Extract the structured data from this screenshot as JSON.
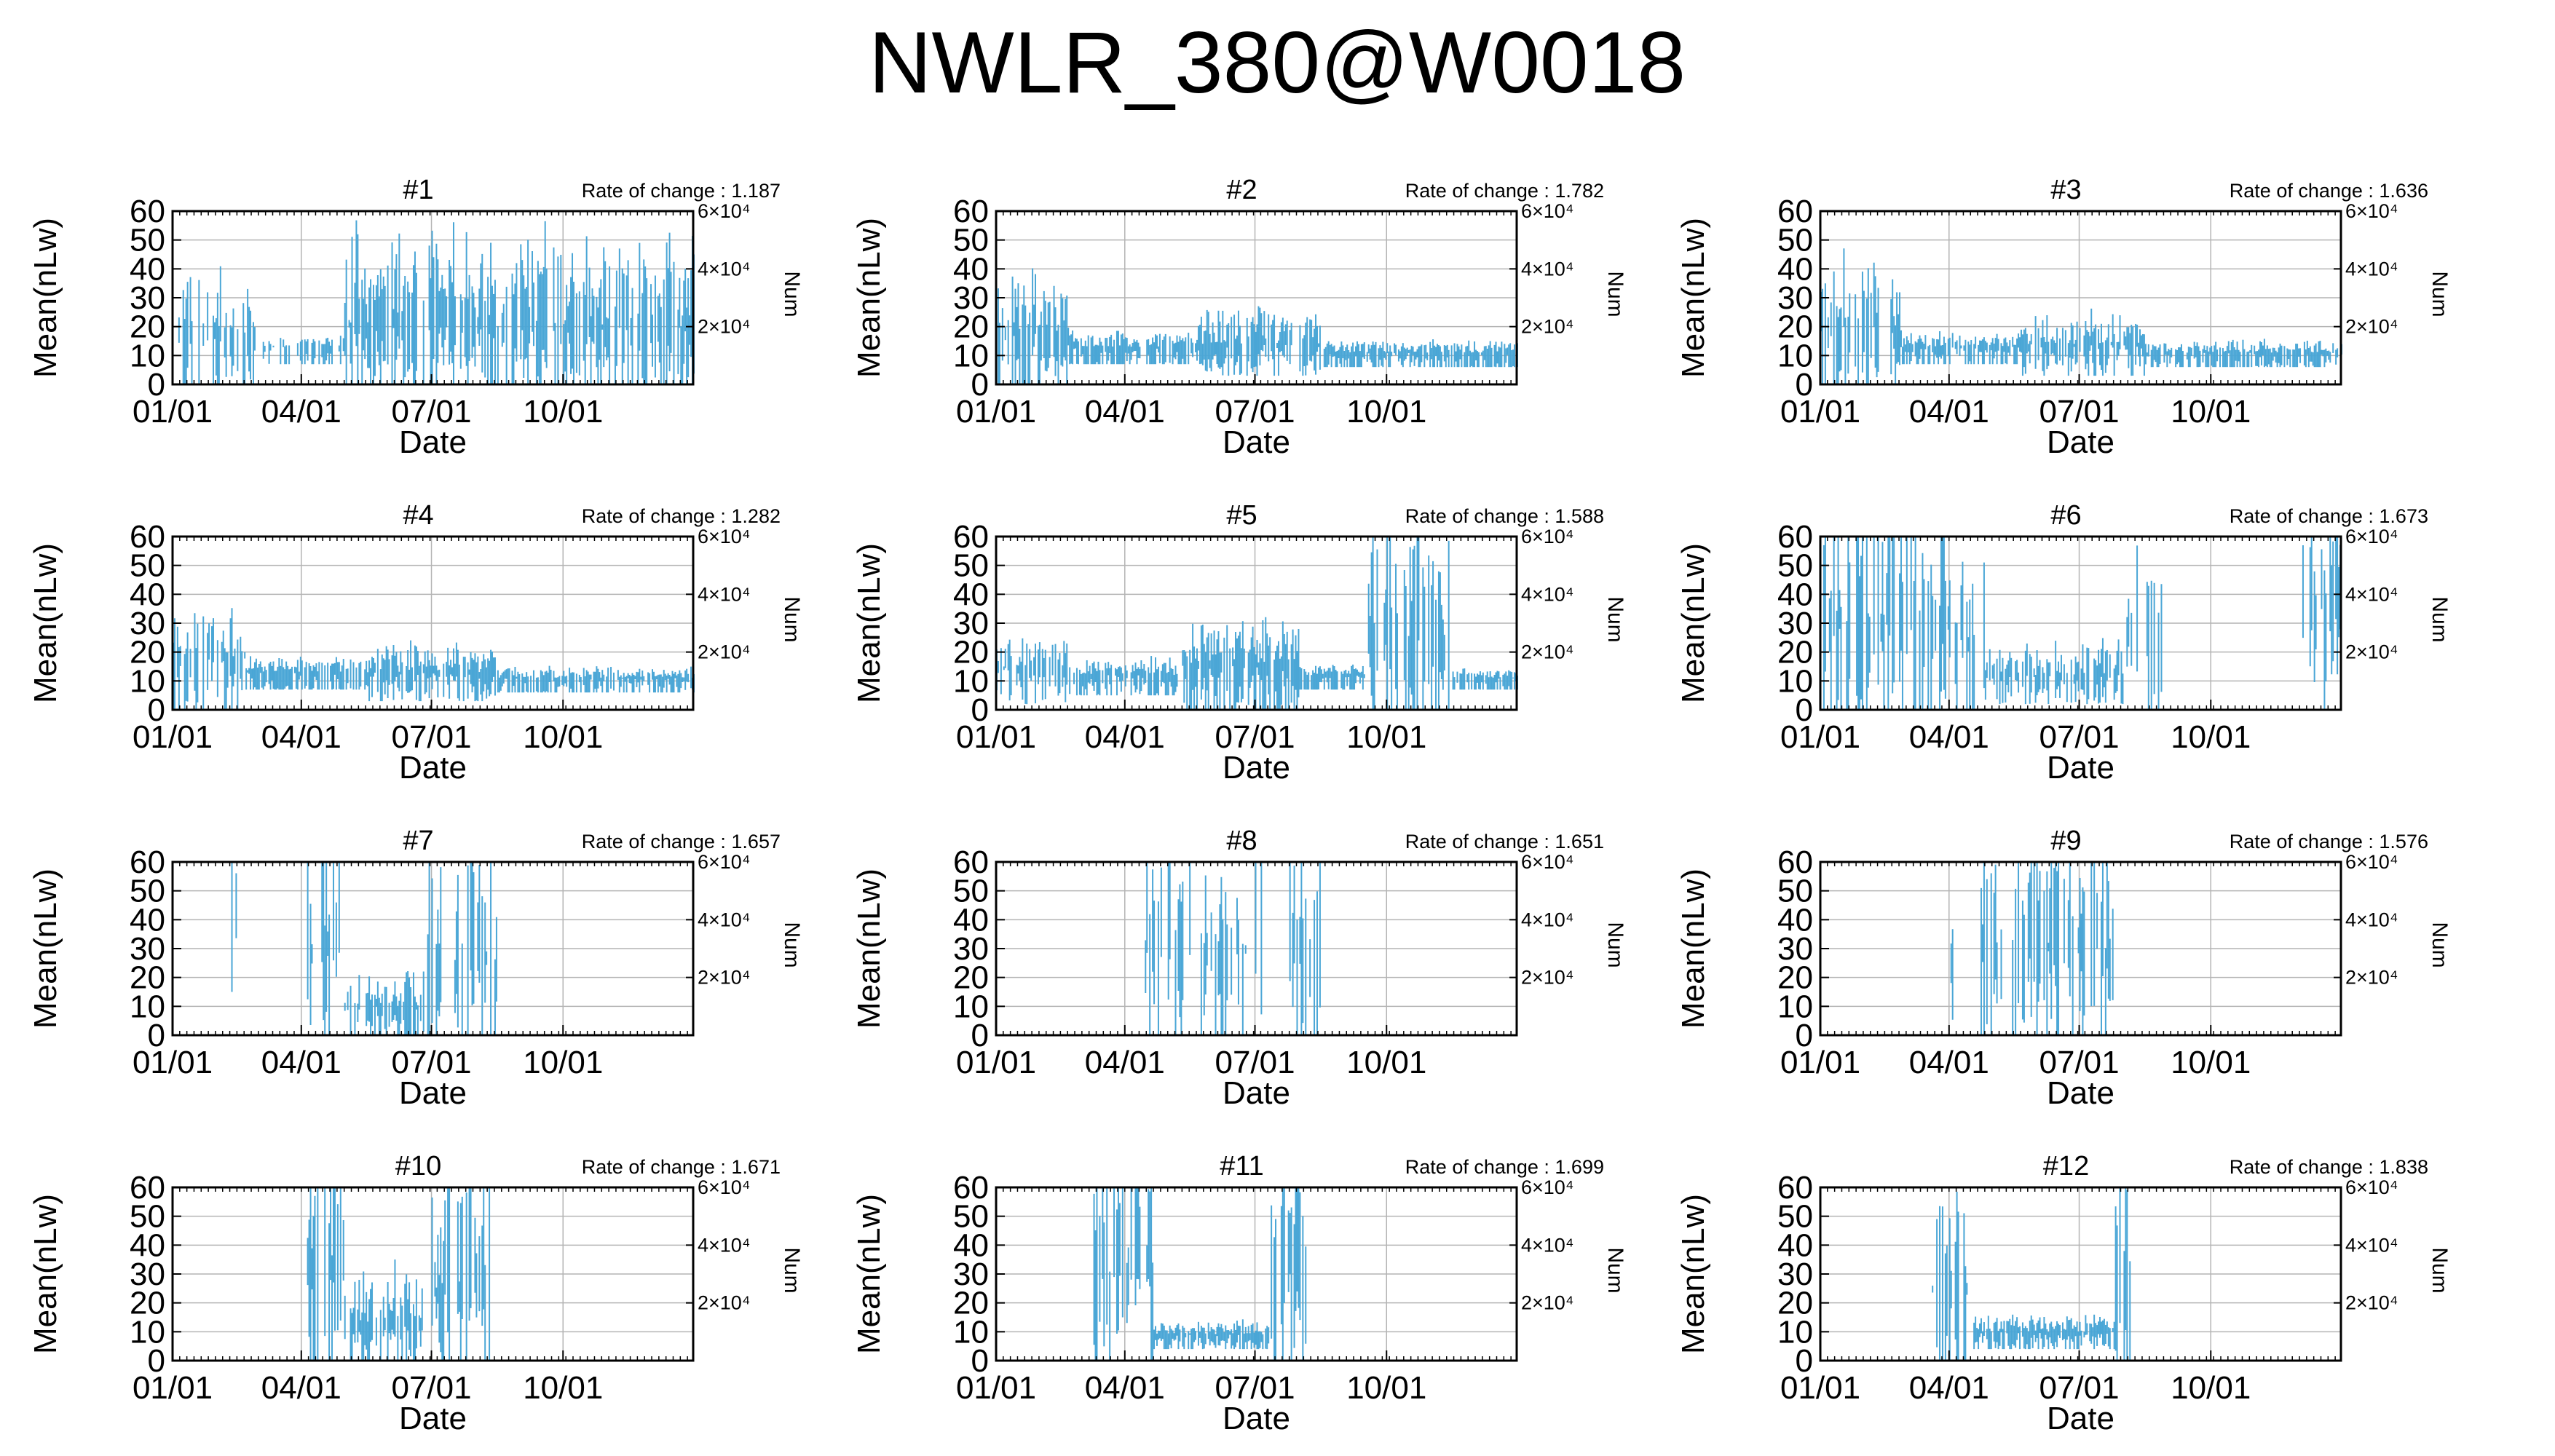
{
  "figure_title": "NWLR_380@W0018",
  "colors": {
    "data": "#4aa6d6",
    "grid": "#b4b4b4",
    "frame": "#000000"
  },
  "chart_data": {
    "type": "line",
    "style": "daily-value-bars",
    "panel_grid": {
      "rows": 4,
      "cols": 3
    },
    "shared_axes": {
      "xlabel": "Date",
      "ylabel_left": "Mean(nLw)",
      "ylabel_right": "Num",
      "x_range": [
        "2001-01-01",
        "2001-12-31"
      ],
      "x_ticks": [
        "2001-01-01",
        "2001-04-01",
        "2001-07-01",
        "2001-10-01"
      ],
      "x_tick_labels": [
        "01/01",
        "04/01",
        "07/01",
        "10/01"
      ],
      "ylim_left": [
        0,
        60
      ],
      "y_ticks_left": [
        "0",
        "10",
        "20",
        "30",
        "40",
        "50",
        "60"
      ],
      "ylim_right": [
        0,
        60000
      ],
      "y_ticks_right": [
        "2×10⁴",
        "4×10⁴",
        "6×10⁴"
      ],
      "grid": true
    },
    "panels": [
      {
        "title": "#1",
        "rate_label": "Rate of change : 1.187",
        "segments": [
          {
            "start": "01-01",
            "end": "02-28",
            "base": 16,
            "spread": 26,
            "density": 0.55,
            "low": 0
          },
          {
            "start": "03-01",
            "end": "04-30",
            "base": 13,
            "spread": 5,
            "density": 0.55,
            "low": 7
          },
          {
            "start": "05-01",
            "end": "12-31",
            "base": 20,
            "spread": 38,
            "density": 0.72,
            "low": 0
          }
        ]
      },
      {
        "title": "#2",
        "rate_label": "Rate of change : 1.782",
        "segments": [
          {
            "start": "01-01",
            "end": "02-20",
            "base": 18,
            "spread": 26,
            "density": 0.6,
            "low": 0
          },
          {
            "start": "02-21",
            "end": "05-20",
            "base": 13,
            "spread": 6,
            "density": 0.8,
            "low": 7
          },
          {
            "start": "05-21",
            "end": "08-15",
            "base": 14,
            "spread": 14,
            "density": 0.85,
            "low": 3
          },
          {
            "start": "08-16",
            "end": "12-31",
            "base": 11,
            "spread": 5,
            "density": 0.85,
            "low": 6
          }
        ]
      },
      {
        "title": "#3",
        "rate_label": "Rate of change : 1.636",
        "segments": [
          {
            "start": "01-01",
            "end": "02-25",
            "base": 20,
            "spread": 28,
            "density": 0.6,
            "low": 0
          },
          {
            "start": "02-26",
            "end": "05-20",
            "base": 13,
            "spread": 6,
            "density": 0.8,
            "low": 7
          },
          {
            "start": "05-21",
            "end": "08-15",
            "base": 14,
            "spread": 13,
            "density": 0.85,
            "low": 3
          },
          {
            "start": "08-16",
            "end": "12-31",
            "base": 11,
            "spread": 5,
            "density": 0.85,
            "low": 6
          }
        ]
      },
      {
        "title": "#4",
        "rate_label": "Rate of change : 1.282",
        "segments": [
          {
            "start": "01-01",
            "end": "02-20",
            "base": 18,
            "spread": 20,
            "density": 0.6,
            "low": 0
          },
          {
            "start": "02-21",
            "end": "05-15",
            "base": 13,
            "spread": 6,
            "density": 0.8,
            "low": 7
          },
          {
            "start": "05-16",
            "end": "08-15",
            "base": 13,
            "spread": 12,
            "density": 0.85,
            "low": 3
          },
          {
            "start": "08-16",
            "end": "12-31",
            "base": 11,
            "spread": 5,
            "density": 0.85,
            "low": 6
          }
        ]
      },
      {
        "title": "#5",
        "rate_label": "Rate of change : 1.588",
        "segments": [
          {
            "start": "01-01",
            "end": "02-20",
            "base": 15,
            "spread": 12,
            "density": 0.6,
            "low": 2
          },
          {
            "start": "02-21",
            "end": "05-10",
            "base": 12,
            "spread": 8,
            "density": 0.8,
            "low": 5
          },
          {
            "start": "05-11",
            "end": "07-31",
            "base": 16,
            "spread": 18,
            "density": 0.85,
            "low": 0
          },
          {
            "start": "08-01",
            "end": "09-15",
            "base": 12,
            "spread": 4,
            "density": 0.8,
            "low": 7
          },
          {
            "start": "09-16",
            "end": "11-15",
            "base": 25,
            "spread": 60,
            "density": 0.6,
            "low": 0
          },
          {
            "start": "11-16",
            "end": "12-31",
            "base": 11,
            "spread": 4,
            "density": 0.8,
            "low": 7
          }
        ]
      },
      {
        "title": "#6",
        "rate_label": "Rate of change : 1.673",
        "segments": [
          {
            "start": "01-01",
            "end": "03-31",
            "base": 30,
            "spread": 60,
            "density": 0.6,
            "low": 0
          },
          {
            "start": "04-01",
            "end": "04-25",
            "base": 25,
            "spread": 40,
            "density": 0.4,
            "low": 0
          },
          {
            "start": "04-26",
            "end": "07-31",
            "base": 12,
            "spread": 14,
            "density": 0.75,
            "low": 2
          },
          {
            "start": "08-01",
            "end": "08-31",
            "base": 25,
            "spread": 60,
            "density": 0.3,
            "low": 0
          },
          {
            "start": "12-01",
            "end": "12-31",
            "base": 35,
            "spread": 60,
            "density": 0.5,
            "low": 0
          }
        ]
      },
      {
        "title": "#7",
        "rate_label": "Rate of change : 1.657",
        "segments": [
          {
            "start": "02-10",
            "end": "02-14",
            "base": 40,
            "spread": 60,
            "density": 0.5,
            "low": 15
          },
          {
            "start": "04-01",
            "end": "04-30",
            "base": 30,
            "spread": 60,
            "density": 0.5,
            "low": 0
          },
          {
            "start": "05-01",
            "end": "06-25",
            "base": 10,
            "spread": 15,
            "density": 0.6,
            "low": 0
          },
          {
            "start": "06-26",
            "end": "08-15",
            "base": 25,
            "spread": 60,
            "density": 0.5,
            "low": 0
          }
        ]
      },
      {
        "title": "#8",
        "rate_label": "Rate of change : 1.651",
        "segments": [
          {
            "start": "04-15",
            "end": "07-05",
            "base": 30,
            "spread": 60,
            "density": 0.45,
            "low": 0
          },
          {
            "start": "07-20",
            "end": "08-15",
            "base": 30,
            "spread": 60,
            "density": 0.3,
            "low": 0
          }
        ]
      },
      {
        "title": "#9",
        "rate_label": "Rate of change : 1.576",
        "segments": [
          {
            "start": "04-01",
            "end": "04-03",
            "base": 30,
            "spread": 30,
            "density": 0.5,
            "low": 5
          },
          {
            "start": "04-20",
            "end": "07-25",
            "base": 30,
            "spread": 60,
            "density": 0.5,
            "low": 0
          }
        ]
      },
      {
        "title": "#10",
        "rate_label": "Rate of change : 1.671",
        "segments": [
          {
            "start": "04-05",
            "end": "04-30",
            "base": 35,
            "spread": 60,
            "density": 0.5,
            "low": 0
          },
          {
            "start": "05-01",
            "end": "06-25",
            "base": 12,
            "spread": 25,
            "density": 0.65,
            "low": 0
          },
          {
            "start": "06-26",
            "end": "08-10",
            "base": 25,
            "spread": 60,
            "density": 0.5,
            "low": 0
          }
        ]
      },
      {
        "title": "#11",
        "rate_label": "Rate of change : 1.699",
        "segments": [
          {
            "start": "03-10",
            "end": "04-20",
            "base": 30,
            "spread": 60,
            "density": 0.6,
            "low": 0
          },
          {
            "start": "04-21",
            "end": "07-10",
            "base": 9,
            "spread": 6,
            "density": 0.9,
            "low": 4
          },
          {
            "start": "07-11",
            "end": "08-05",
            "base": 30,
            "spread": 60,
            "density": 0.6,
            "low": 0
          }
        ]
      },
      {
        "title": "#12",
        "rate_label": "Rate of change : 1.838",
        "segments": [
          {
            "start": "03-20",
            "end": "04-15",
            "base": 25,
            "spread": 55,
            "density": 0.6,
            "low": 0
          },
          {
            "start": "04-16",
            "end": "07-25",
            "base": 10,
            "spread": 7,
            "density": 0.9,
            "low": 4
          },
          {
            "start": "07-26",
            "end": "08-05",
            "base": 30,
            "spread": 60,
            "density": 0.5,
            "low": 0
          }
        ]
      }
    ]
  }
}
